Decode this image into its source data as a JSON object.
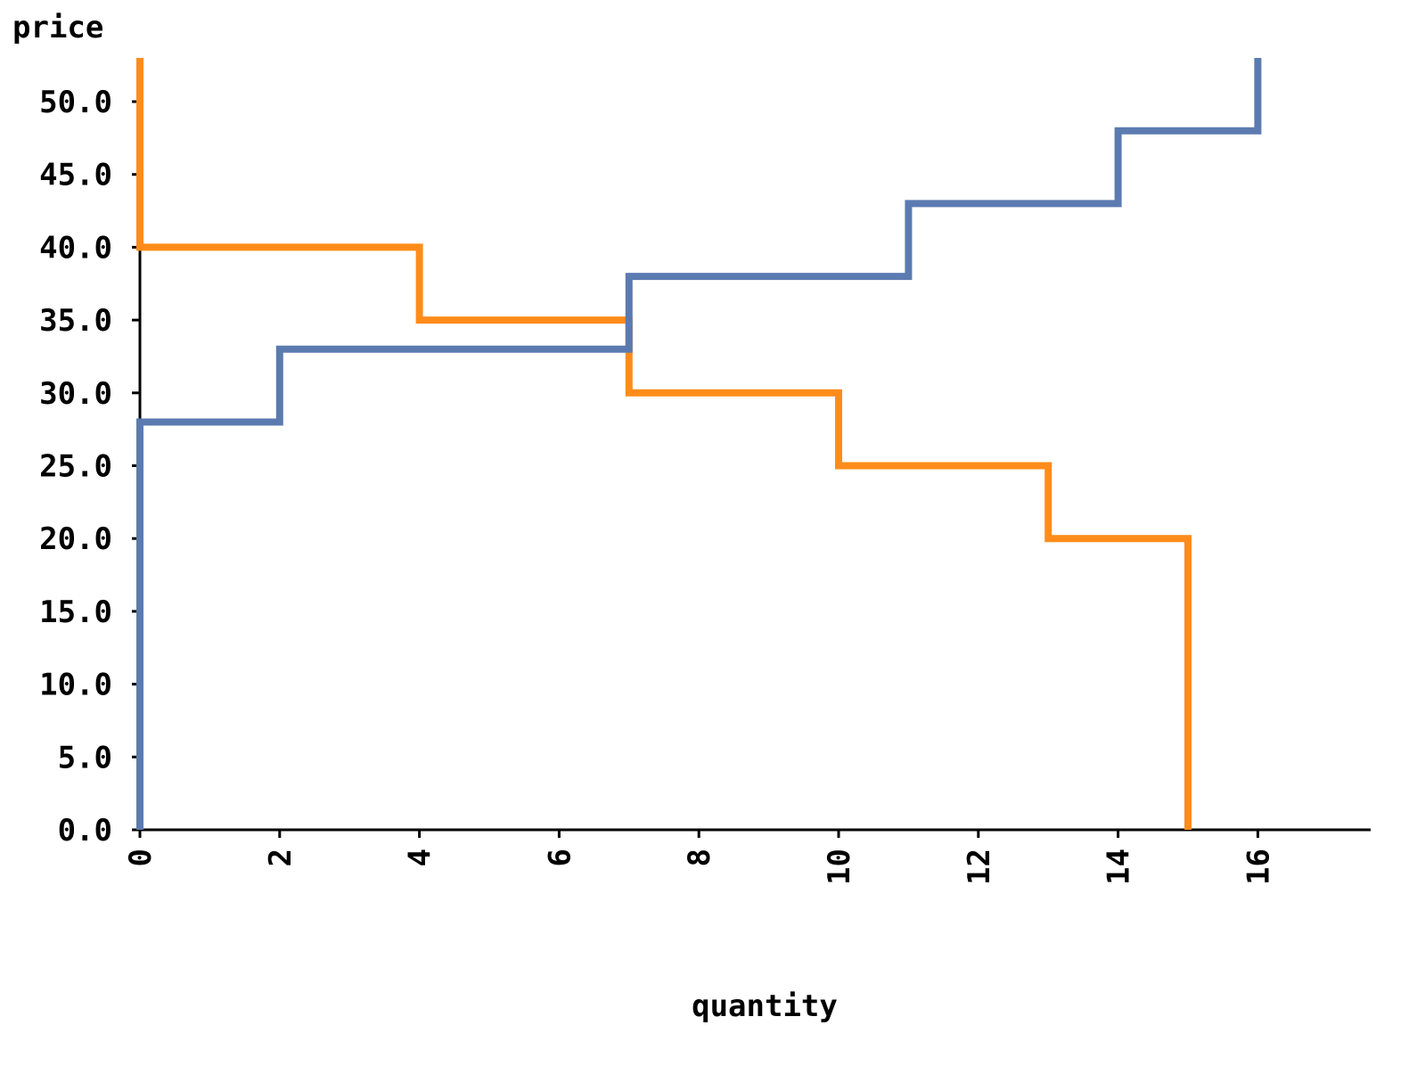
{
  "chart_data": {
    "type": "line",
    "step": true,
    "xlabel": "quantity",
    "ylabel": "price",
    "xlim": [
      0,
      17.6
    ],
    "ylim": [
      0,
      53
    ],
    "xticks": [
      "0",
      "2",
      "4",
      "6",
      "8",
      "10",
      "12",
      "14",
      "16"
    ],
    "yticks": [
      "0.0",
      "5.0",
      "10.0",
      "15.0",
      "20.0",
      "25.0",
      "30.0",
      "35.0",
      "40.0",
      "45.0",
      "50.0"
    ],
    "grid": false,
    "legend": "none",
    "series": [
      {
        "color": "#ff8c1a",
        "points": [
          [
            0,
            53
          ],
          [
            0,
            40
          ],
          [
            4,
            40
          ],
          [
            4,
            35
          ],
          [
            7,
            35
          ],
          [
            7,
            30
          ],
          [
            10,
            30
          ],
          [
            10,
            25
          ],
          [
            13,
            25
          ],
          [
            13,
            20
          ],
          [
            15,
            20
          ],
          [
            15,
            0
          ]
        ]
      },
      {
        "color": "#5b7bb0",
        "points": [
          [
            0,
            0
          ],
          [
            0,
            28
          ],
          [
            2,
            28
          ],
          [
            2,
            33
          ],
          [
            7,
            33
          ],
          [
            7,
            38
          ],
          [
            11,
            38
          ],
          [
            11,
            43
          ],
          [
            14,
            43
          ],
          [
            14,
            48
          ],
          [
            16,
            48
          ],
          [
            16,
            53
          ]
        ]
      }
    ]
  }
}
